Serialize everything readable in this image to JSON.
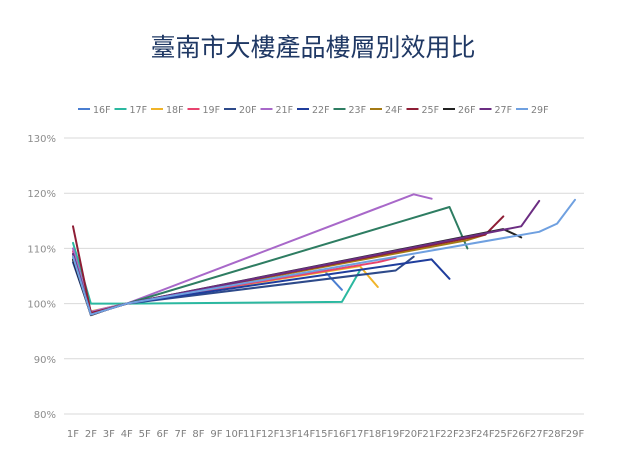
{
  "chart_data": {
    "type": "line",
    "title": "臺南市大樓產品樓層別效用比",
    "xlabel": "",
    "ylabel": "",
    "categories": [
      "1F",
      "2F",
      "3F",
      "4F",
      "5F",
      "6F",
      "7F",
      "8F",
      "9F",
      "10F",
      "11F",
      "12F",
      "13F",
      "14F",
      "15F",
      "16F",
      "17F",
      "18F",
      "19F",
      "20F",
      "21F",
      "22F",
      "23F",
      "24F",
      "25F",
      "26F",
      "27F",
      "28F",
      "29F"
    ],
    "y_ticks": [
      80,
      90,
      100,
      110,
      120,
      130
    ],
    "y_tick_labels": [
      "80%",
      "90%",
      "100%",
      "110%",
      "120%",
      "130%"
    ],
    "ylim": [
      80,
      130
    ],
    "grid": true,
    "legend_position": "top",
    "series": [
      {
        "name": "16F",
        "color": "#4a7ed1",
        "points": [
          [
            1,
            109
          ],
          [
            2,
            98.3
          ],
          [
            3,
            99.2
          ],
          [
            4,
            100
          ],
          [
            15,
            106
          ],
          [
            16,
            102.5
          ]
        ]
      },
      {
        "name": "17F",
        "color": "#2bb8a0",
        "points": [
          [
            1,
            111
          ],
          [
            2,
            100
          ],
          [
            3,
            100
          ],
          [
            4,
            100
          ],
          [
            16,
            100.3
          ],
          [
            17,
            106
          ]
        ]
      },
      {
        "name": "18F",
        "color": "#f0b429",
        "points": [
          [
            1,
            108
          ],
          [
            2,
            98.6
          ],
          [
            3,
            99.3
          ],
          [
            4,
            100
          ],
          [
            17,
            106.8
          ],
          [
            18,
            103
          ]
        ]
      },
      {
        "name": "19F",
        "color": "#e8436e",
        "points": [
          [
            1,
            109.5
          ],
          [
            2,
            98.4
          ],
          [
            3,
            99.2
          ],
          [
            4,
            100
          ],
          [
            18,
            107.5
          ],
          [
            19,
            108.3
          ]
        ]
      },
      {
        "name": "20F",
        "color": "#2e4a8a",
        "points": [
          [
            1,
            108
          ],
          [
            2,
            98.2
          ],
          [
            3,
            99.1
          ],
          [
            4,
            100
          ],
          [
            19,
            106
          ],
          [
            20,
            108.5
          ]
        ]
      },
      {
        "name": "21F",
        "color": "#a868c9",
        "points": [
          [
            1,
            110
          ],
          [
            2,
            98.5
          ],
          [
            3,
            99.3
          ],
          [
            4,
            100
          ],
          [
            20,
            119.8
          ],
          [
            21,
            119
          ]
        ]
      },
      {
        "name": "22F",
        "color": "#1f3d9c",
        "points": [
          [
            1,
            107.5
          ],
          [
            2,
            98.1
          ],
          [
            3,
            99
          ],
          [
            4,
            100
          ],
          [
            21,
            108
          ],
          [
            22,
            104.5
          ]
        ]
      },
      {
        "name": "23F",
        "color": "#2e7d62",
        "points": [
          [
            1,
            109
          ],
          [
            2,
            98.2
          ],
          [
            3,
            99.1
          ],
          [
            4,
            100
          ],
          [
            22,
            117.5
          ],
          [
            23,
            110
          ]
        ]
      },
      {
        "name": "24F",
        "color": "#a47a14",
        "points": [
          [
            1,
            108.5
          ],
          [
            2,
            98.2
          ],
          [
            3,
            99.1
          ],
          [
            4,
            100
          ],
          [
            23,
            111.5
          ],
          [
            24,
            112.5
          ]
        ]
      },
      {
        "name": "25F",
        "color": "#8e1d35",
        "points": [
          [
            1,
            114
          ],
          [
            2,
            98.3
          ],
          [
            3,
            99.1
          ],
          [
            4,
            100
          ],
          [
            24,
            112.5
          ],
          [
            25,
            115.8
          ]
        ]
      },
      {
        "name": "26F",
        "color": "#222222",
        "points": [
          [
            1,
            108
          ],
          [
            2,
            97.9
          ],
          [
            3,
            99
          ],
          [
            4,
            100
          ],
          [
            25,
            113.5
          ],
          [
            26,
            112
          ]
        ]
      },
      {
        "name": "27F",
        "color": "#6b2d82",
        "points": [
          [
            1,
            109
          ],
          [
            2,
            98
          ],
          [
            3,
            99
          ],
          [
            4,
            100
          ],
          [
            26,
            114
          ],
          [
            27,
            118.6
          ]
        ]
      },
      {
        "name": "29F",
        "color": "#6fa0e0",
        "points": [
          [
            1,
            108.5
          ],
          [
            2,
            98
          ],
          [
            3,
            99
          ],
          [
            4,
            100
          ],
          [
            27,
            113
          ],
          [
            28,
            114.5
          ],
          [
            29,
            118.8
          ]
        ]
      }
    ]
  }
}
